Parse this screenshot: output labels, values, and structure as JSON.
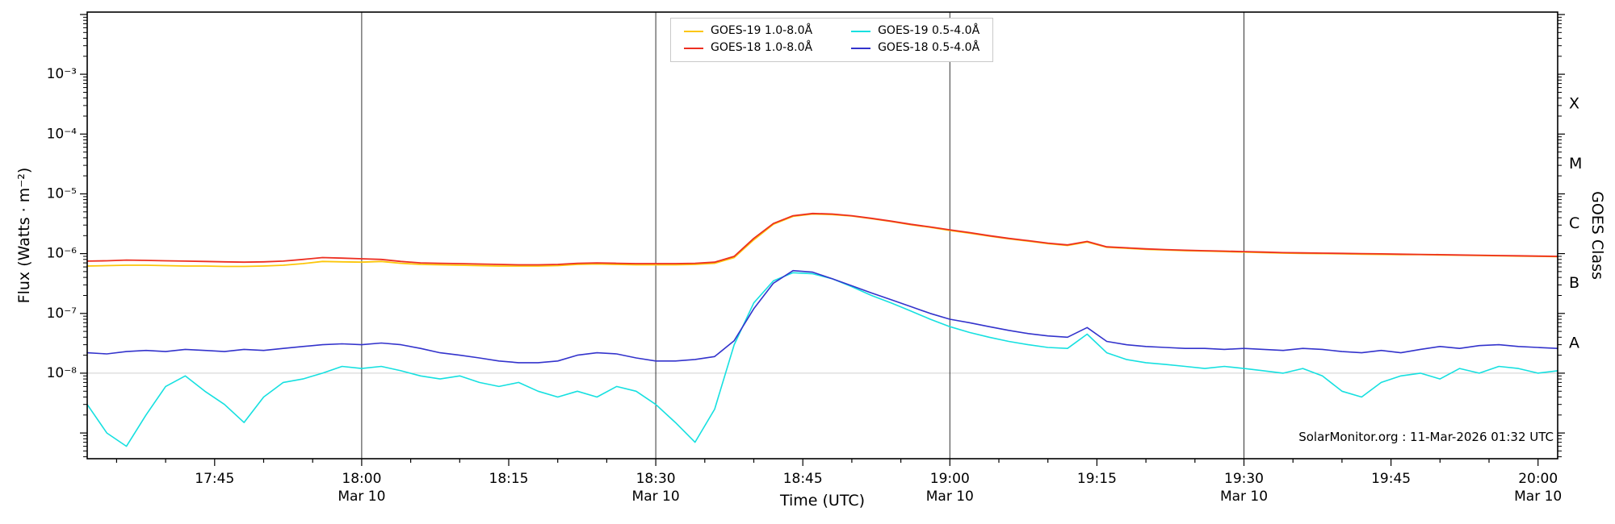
{
  "figure": {
    "background": "#ffffff",
    "watermark": "SolarMonitor.org : 11-Mar-2026 01:32 UTC"
  },
  "axes": {
    "x_label": "Time (UTC)",
    "y_label": "Flux (Watts · m⁻²)",
    "right_label": "GOES Class",
    "x_ticks": [
      {
        "label": "17:45",
        "minutes": 1065,
        "date": ""
      },
      {
        "label": "18:00",
        "minutes": 1080,
        "date": "Mar 10"
      },
      {
        "label": "18:15",
        "minutes": 1095,
        "date": ""
      },
      {
        "label": "18:30",
        "minutes": 1110,
        "date": "Mar 10"
      },
      {
        "label": "18:45",
        "minutes": 1125,
        "date": ""
      },
      {
        "label": "19:00",
        "minutes": 1140,
        "date": "Mar 10"
      },
      {
        "label": "19:15",
        "minutes": 1155,
        "date": ""
      },
      {
        "label": "19:30",
        "minutes": 1170,
        "date": "Mar 10"
      },
      {
        "label": "19:45",
        "minutes": 1185,
        "date": ""
      },
      {
        "label": "20:00",
        "minutes": 1200,
        "date": "Mar 10"
      }
    ],
    "y_ticks": [
      {
        "label": "10⁻³",
        "exp": -3
      },
      {
        "label": "10⁻⁴",
        "exp": -4
      },
      {
        "label": "10⁻⁵",
        "exp": -5
      },
      {
        "label": "10⁻⁶",
        "exp": -6
      },
      {
        "label": "10⁻⁷",
        "exp": -7
      },
      {
        "label": "10⁻⁸",
        "exp": -8
      }
    ],
    "goes_classes": [
      {
        "label": "X",
        "exp": -3.5
      },
      {
        "label": "M",
        "exp": -4.5
      },
      {
        "label": "C",
        "exp": -5.5
      },
      {
        "label": "B",
        "exp": -6.5
      },
      {
        "label": "A",
        "exp": -7.5
      }
    ]
  },
  "legend": {
    "items": [
      {
        "label": "GOES-19 1.0-8.0Å",
        "color": "#fcc60a"
      },
      {
        "label": "GOES-18 1.0-8.0Å",
        "color": "#ed2f21"
      },
      {
        "label": "GOES-19 0.5-4.0Å",
        "color": "#16e0e0"
      },
      {
        "label": "GOES-18 0.5-4.0Å",
        "color": "#3333cc"
      }
    ]
  },
  "chart_data": {
    "type": "line",
    "title": "",
    "xlabel": "Time (UTC)",
    "ylabel": "Flux (Watts · m⁻²)",
    "x_axis": "UTC minutes of day, Mar 10",
    "x_range_minutes": [
      1052,
      1202
    ],
    "ylog10_range": [
      -9.43,
      -1.96
    ],
    "gridlines_x_minutes": [
      1080,
      1110,
      1140,
      1170
    ],
    "gridline_y_exp": -8,
    "legend_position": "top-center",
    "x": [
      1052,
      1054,
      1056,
      1058,
      1060,
      1062,
      1064,
      1066,
      1068,
      1070,
      1072,
      1074,
      1076,
      1078,
      1080,
      1082,
      1084,
      1086,
      1088,
      1090,
      1092,
      1094,
      1096,
      1098,
      1100,
      1102,
      1104,
      1106,
      1108,
      1110,
      1112,
      1114,
      1116,
      1118,
      1120,
      1122,
      1124,
      1126,
      1128,
      1130,
      1132,
      1134,
      1136,
      1138,
      1140,
      1142,
      1144,
      1146,
      1148,
      1150,
      1152,
      1154,
      1156,
      1158,
      1160,
      1162,
      1164,
      1166,
      1168,
      1170,
      1172,
      1174,
      1176,
      1178,
      1180,
      1182,
      1184,
      1186,
      1188,
      1190,
      1192,
      1194,
      1196,
      1198,
      1200,
      1202
    ],
    "series": [
      {
        "name": "GOES-19 0.5-4.0Å",
        "color": "#16e0e0",
        "width": 1.6,
        "values": [
          3e-09,
          1e-09,
          6e-10,
          2e-09,
          6e-09,
          9e-09,
          5e-09,
          3e-09,
          1.5e-09,
          4e-09,
          7e-09,
          8e-09,
          1e-08,
          1.3e-08,
          1.2e-08,
          1.3e-08,
          1.1e-08,
          9e-09,
          8e-09,
          9e-09,
          7e-09,
          6e-09,
          7e-09,
          5e-09,
          4e-09,
          5e-09,
          4e-09,
          6e-09,
          5e-09,
          3e-09,
          1.5e-09,
          7e-10,
          2.5e-09,
          3e-08,
          1.5e-07,
          3.5e-07,
          4.8e-07,
          4.6e-07,
          3.8e-07,
          2.8e-07,
          2e-07,
          1.5e-07,
          1.1e-07,
          8e-08,
          6e-08,
          4.8e-08,
          4e-08,
          3.4e-08,
          3e-08,
          2.7e-08,
          2.6e-08,
          4.5e-08,
          2.2e-08,
          1.7e-08,
          1.5e-08,
          1.4e-08,
          1.3e-08,
          1.2e-08,
          1.3e-08,
          1.2e-08,
          1.1e-08,
          1e-08,
          1.2e-08,
          9e-09,
          5e-09,
          4e-09,
          7e-09,
          9e-09,
          1e-08,
          8e-09,
          1.2e-08,
          1e-08,
          1.3e-08,
          1.2e-08,
          1e-08,
          1.1e-08
        ]
      },
      {
        "name": "GOES-18 0.5-4.0Å",
        "color": "#3333cc",
        "width": 1.6,
        "values": [
          2.2e-08,
          2.1e-08,
          2.3e-08,
          2.4e-08,
          2.3e-08,
          2.5e-08,
          2.4e-08,
          2.3e-08,
          2.5e-08,
          2.4e-08,
          2.6e-08,
          2.8e-08,
          3e-08,
          3.1e-08,
          3e-08,
          3.2e-08,
          3e-08,
          2.6e-08,
          2.2e-08,
          2e-08,
          1.8e-08,
          1.6e-08,
          1.5e-08,
          1.5e-08,
          1.6e-08,
          2e-08,
          2.2e-08,
          2.1e-08,
          1.8e-08,
          1.6e-08,
          1.6e-08,
          1.7e-08,
          1.9e-08,
          3.5e-08,
          1.2e-07,
          3.2e-07,
          5.2e-07,
          4.9e-07,
          3.8e-07,
          2.9e-07,
          2.2e-07,
          1.7e-07,
          1.3e-07,
          1e-07,
          8e-08,
          7e-08,
          6e-08,
          5.2e-08,
          4.6e-08,
          4.2e-08,
          4e-08,
          5.8e-08,
          3.4e-08,
          3e-08,
          2.8e-08,
          2.7e-08,
          2.6e-08,
          2.6e-08,
          2.5e-08,
          2.6e-08,
          2.5e-08,
          2.4e-08,
          2.6e-08,
          2.5e-08,
          2.3e-08,
          2.2e-08,
          2.4e-08,
          2.2e-08,
          2.5e-08,
          2.8e-08,
          2.6e-08,
          2.9e-08,
          3e-08,
          2.8e-08,
          2.7e-08,
          2.6e-08
        ]
      },
      {
        "name": "GOES-19 1.0-8.0Å",
        "color": "#fcc60a",
        "width": 1.8,
        "values": [
          6.2e-07,
          6.3e-07,
          6.4e-07,
          6.4e-07,
          6.3e-07,
          6.2e-07,
          6.2e-07,
          6.1e-07,
          6.1e-07,
          6.2e-07,
          6.4e-07,
          6.8e-07,
          7.4e-07,
          7.3e-07,
          7.2e-07,
          7.4e-07,
          6.9e-07,
          6.6e-07,
          6.5e-07,
          6.4e-07,
          6.3e-07,
          6.2e-07,
          6.2e-07,
          6.2e-07,
          6.3e-07,
          6.6e-07,
          6.7e-07,
          6.6e-07,
          6.5e-07,
          6.5e-07,
          6.5e-07,
          6.6e-07,
          6.9e-07,
          8.6e-07,
          1.7e-06,
          3.1e-06,
          4.2e-06,
          4.6e-06,
          4.5e-06,
          4.25e-06,
          3.85e-06,
          3.45e-06,
          3.05e-06,
          2.75e-06,
          2.45e-06,
          2.2e-06,
          1.96e-06,
          1.77e-06,
          1.62e-06,
          1.47e-06,
          1.37e-06,
          1.56e-06,
          1.28e-06,
          1.23e-06,
          1.18e-06,
          1.15e-06,
          1.12e-06,
          1.1e-06,
          1.08e-06,
          1.06e-06,
          1.04e-06,
          1.02e-06,
          1.01e-06,
          1e-06,
          9.9e-07,
          9.8e-07,
          9.7e-07,
          9.6e-07,
          9.6e-07,
          9.5e-07,
          9.4e-07,
          9.3e-07,
          9.2e-07,
          9.1e-07,
          9e-07,
          8.9e-07
        ]
      },
      {
        "name": "GOES-18 1.0-8.0Å",
        "color": "#ed2f21",
        "width": 1.8,
        "values": [
          7.5e-07,
          7.6e-07,
          7.8e-07,
          7.7e-07,
          7.6e-07,
          7.5e-07,
          7.4e-07,
          7.3e-07,
          7.2e-07,
          7.3e-07,
          7.5e-07,
          8e-07,
          8.6e-07,
          8.4e-07,
          8.2e-07,
          8e-07,
          7.4e-07,
          7e-07,
          6.9e-07,
          6.8e-07,
          6.7e-07,
          6.6e-07,
          6.5e-07,
          6.5e-07,
          6.6e-07,
          6.9e-07,
          7e-07,
          6.9e-07,
          6.8e-07,
          6.8e-07,
          6.8e-07,
          6.9e-07,
          7.2e-07,
          9e-07,
          1.8e-06,
          3.2e-06,
          4.3e-06,
          4.7e-06,
          4.6e-06,
          4.3e-06,
          3.9e-06,
          3.5e-06,
          3.1e-06,
          2.8e-06,
          2.5e-06,
          2.25e-06,
          2e-06,
          1.8e-06,
          1.65e-06,
          1.5e-06,
          1.4e-06,
          1.6e-06,
          1.3e-06,
          1.25e-06,
          1.2e-06,
          1.17e-06,
          1.14e-06,
          1.12e-06,
          1.1e-06,
          1.08e-06,
          1.06e-06,
          1.04e-06,
          1.03e-06,
          1.02e-06,
          1.01e-06,
          1e-06,
          9.9e-07,
          9.8e-07,
          9.7e-07,
          9.6e-07,
          9.5e-07,
          9.4e-07,
          9.3e-07,
          9.2e-07,
          9.1e-07,
          9e-07
        ]
      }
    ]
  }
}
